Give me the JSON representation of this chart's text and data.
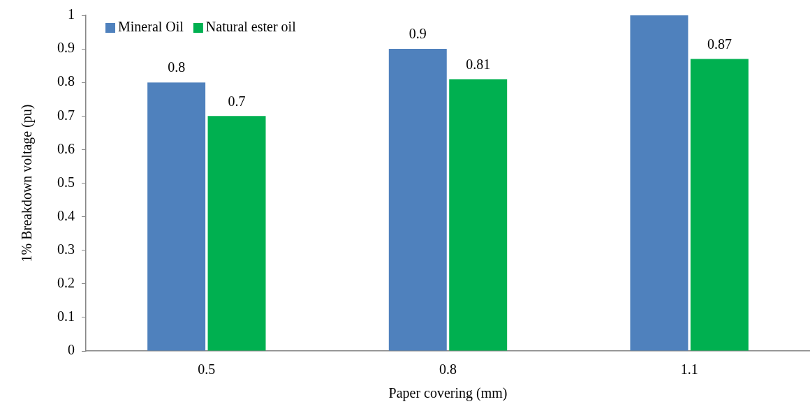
{
  "chart_data": {
    "type": "bar",
    "xlabel": "Paper covering (mm)",
    "ylabel": "1% Breakdown voltage (pu)",
    "categories": [
      "0.5",
      "0.8",
      "1.1"
    ],
    "series": [
      {
        "name": "Mineral Oil",
        "color": "#4f81bd",
        "values": [
          0.8,
          0.9,
          1
        ],
        "value_labels": [
          "0.8",
          "0.9",
          null
        ]
      },
      {
        "name": "Natural ester oil",
        "color": "#00b050",
        "values": [
          0.7,
          0.81,
          0.87
        ],
        "value_labels": [
          "0.7",
          "0.81",
          "0.87"
        ]
      }
    ],
    "ylim": [
      0,
      1
    ],
    "yticks": [
      0,
      0.1,
      0.2,
      0.3,
      0.4,
      0.5,
      0.6,
      0.7,
      0.8,
      0.9,
      1
    ],
    "grid": false,
    "legend": "top left"
  }
}
